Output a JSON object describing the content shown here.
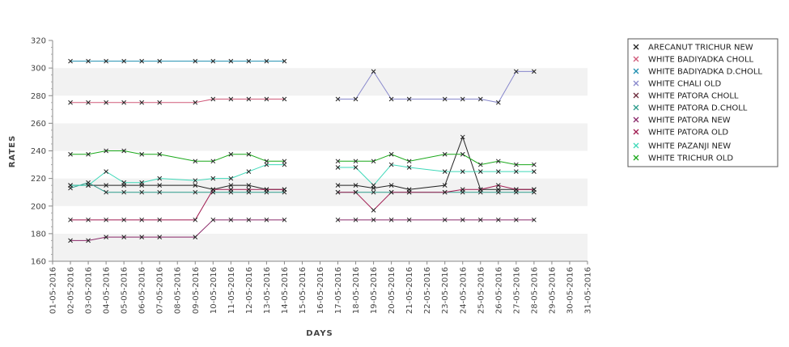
{
  "chart_data": {
    "type": "line",
    "title": "",
    "xlabel": "DAYS",
    "ylabel": "RATES",
    "ylim": [
      160,
      320
    ],
    "yticks": [
      160,
      180,
      200,
      220,
      240,
      260,
      280,
      300,
      320
    ],
    "grid": "horizontal bands",
    "legend_position": "right",
    "x": [
      "01-05-2016",
      "02-05-2016",
      "03-05-2016",
      "04-05-2016",
      "05-05-2016",
      "06-05-2016",
      "07-05-2016",
      "08-05-2016",
      "09-05-2016",
      "10-05-2016",
      "11-05-2016",
      "12-05-2016",
      "13-05-2016",
      "14-05-2016",
      "15-05-2016",
      "16-05-2016",
      "17-05-2016",
      "18-05-2016",
      "19-05-2016",
      "20-05-2016",
      "21-05-2016",
      "22-05-2016",
      "23-05-2016",
      "24-05-2016",
      "25-05-2016",
      "26-05-2016",
      "27-05-2016",
      "28-05-2016",
      "29-05-2016",
      "30-05-2016",
      "31-05-2016"
    ],
    "series": [
      {
        "name": "ARECANUT TRICHUR NEW",
        "color": "#222222",
        "values": [
          null,
          215,
          215,
          215,
          215,
          215,
          215,
          null,
          215,
          212,
          215,
          215,
          212,
          212,
          null,
          null,
          215,
          215,
          213,
          215,
          212,
          null,
          215,
          250,
          212,
          212,
          212,
          212,
          null,
          null,
          null
        ]
      },
      {
        "name": "WHITE BADIYADKA CHOLL",
        "color": "#d05a7a",
        "values": [
          null,
          275,
          275,
          275,
          275,
          275,
          275,
          null,
          275,
          277.5,
          277.5,
          277.5,
          277.5,
          277.5,
          null,
          null,
          null,
          null,
          null,
          null,
          null,
          null,
          null,
          null,
          null,
          null,
          null,
          null,
          null,
          null,
          null
        ]
      },
      {
        "name": "WHITE BADIYADKA D.CHOLL",
        "color": "#1f8fb0",
        "values": [
          null,
          305,
          305,
          305,
          305,
          305,
          305,
          null,
          305,
          305,
          305,
          305,
          305,
          305,
          null,
          null,
          null,
          null,
          null,
          null,
          null,
          null,
          null,
          null,
          null,
          null,
          null,
          null,
          null,
          null,
          null
        ]
      },
      {
        "name": "WHITE CHALI OLD",
        "color": "#8888cc",
        "values": [
          null,
          null,
          null,
          null,
          null,
          null,
          null,
          null,
          null,
          null,
          null,
          null,
          null,
          null,
          null,
          null,
          277.5,
          277.5,
          297.5,
          277.5,
          277.5,
          null,
          277.5,
          277.5,
          277.5,
          275,
          297.5,
          297.5,
          null,
          null,
          null
        ]
      },
      {
        "name": "WHITE PATORA CHOLL",
        "color": "#6a2a3a",
        "values": [
          null,
          null,
          null,
          null,
          null,
          null,
          null,
          null,
          null,
          null,
          null,
          null,
          null,
          null,
          null,
          null,
          null,
          null,
          null,
          null,
          null,
          null,
          null,
          null,
          null,
          null,
          null,
          null,
          null,
          null,
          null
        ]
      },
      {
        "name": "WHITE PATORA D.CHOLL",
        "color": "#2a9a8a",
        "values": [
          null,
          213,
          217,
          210,
          210,
          210,
          210,
          null,
          210,
          210,
          210,
          210,
          210,
          210,
          null,
          null,
          210,
          210,
          210,
          210,
          210,
          null,
          210,
          210,
          210,
          210,
          210,
          210,
          null,
          null,
          null
        ]
      },
      {
        "name": "WHITE PATORA NEW",
        "color": "#8a2a6a",
        "values": [
          null,
          175,
          175,
          177.5,
          177.5,
          177.5,
          177.5,
          null,
          177.5,
          190,
          190,
          190,
          190,
          190,
          null,
          null,
          190,
          190,
          190,
          190,
          190,
          null,
          190,
          190,
          190,
          190,
          190,
          190,
          null,
          null,
          null
        ]
      },
      {
        "name": "WHITE PATORA OLD",
        "color": "#a01a50",
        "values": [
          null,
          190,
          190,
          190,
          190,
          190,
          190,
          null,
          190,
          212,
          212,
          212,
          212,
          212,
          null,
          null,
          210,
          210,
          197,
          210,
          210,
          null,
          210,
          212,
          212,
          215,
          212,
          212,
          null,
          null,
          null
        ]
      },
      {
        "name": "WHITE PAZANJI NEW",
        "color": "#3ed8b8",
        "values": [
          null,
          215,
          215,
          225,
          217,
          217,
          220,
          null,
          218.5,
          220,
          220,
          225,
          230,
          230,
          null,
          null,
          228,
          228,
          215,
          230,
          228,
          null,
          225,
          225,
          225,
          225,
          225,
          225,
          null,
          null,
          null
        ]
      },
      {
        "name": "WHITE TRICHUR OLD",
        "color": "#1aa81a",
        "values": [
          null,
          237.5,
          237.5,
          240,
          240,
          237.5,
          237.5,
          null,
          232.5,
          232.5,
          237.5,
          237.5,
          232.5,
          232.5,
          null,
          null,
          232.5,
          232.5,
          232.5,
          237.5,
          232.5,
          null,
          237.5,
          237.5,
          230,
          232.5,
          230,
          230,
          null,
          null,
          null
        ]
      }
    ]
  }
}
